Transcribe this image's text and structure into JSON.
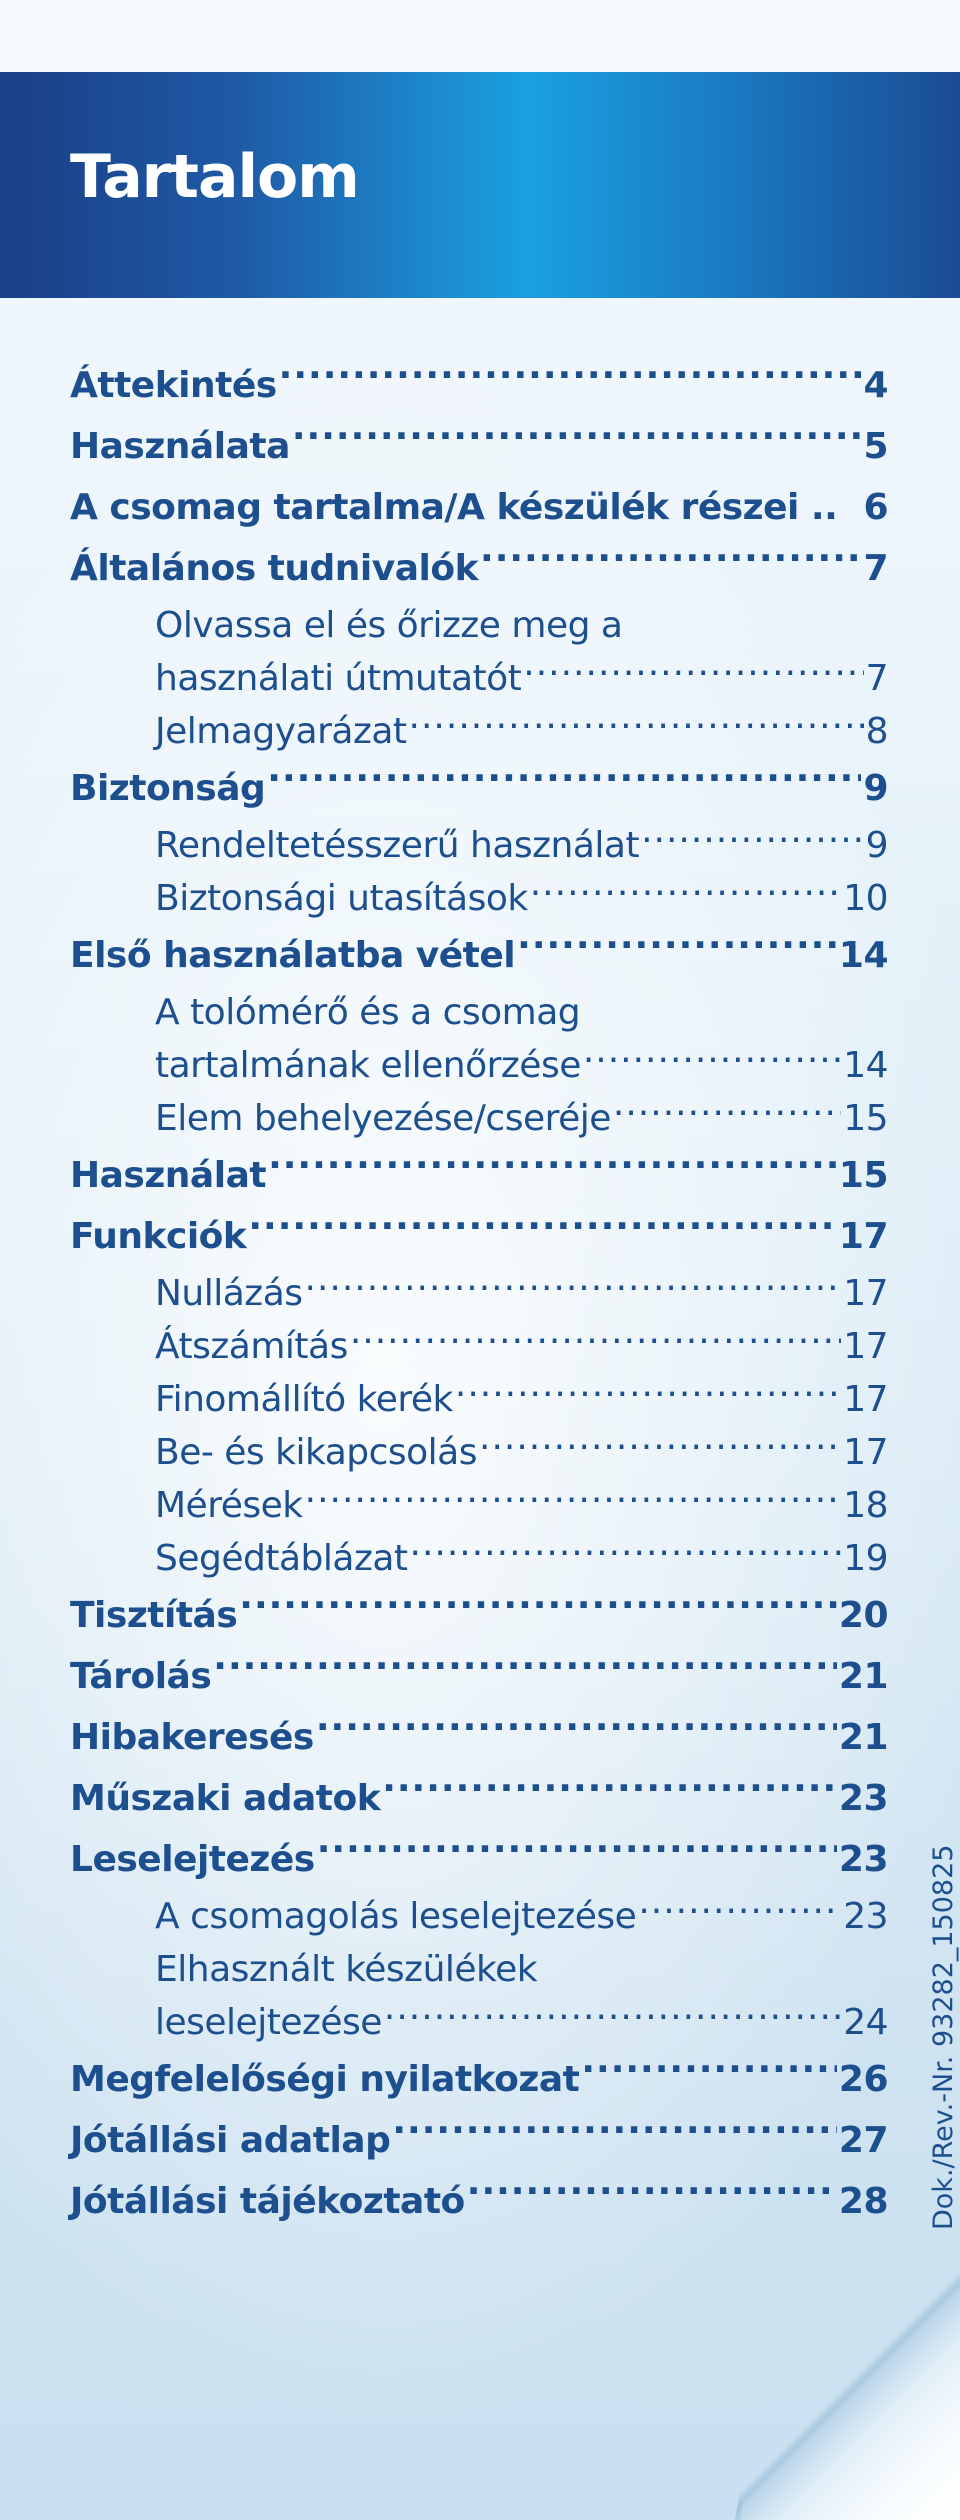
{
  "title": "Tartalom",
  "doc_number": "Dok./Rev.-Nr. 93282_150825",
  "toc": [
    {
      "label": "Áttekintés",
      "page": "4",
      "level": "main"
    },
    {
      "label": "Használata",
      "page": "5",
      "level": "main"
    },
    {
      "label": "A csomag tartalma/A készülék részei ..",
      "page": "6",
      "level": "main",
      "no_dots": true
    },
    {
      "label": "Általános tudnivalók",
      "page": "7",
      "level": "main"
    },
    {
      "label": "Olvassa el és őrizze meg a",
      "page": "",
      "level": "sub",
      "no_dots": true
    },
    {
      "label": "használati útmutatót",
      "page": "7",
      "level": "sub"
    },
    {
      "label": "Jelmagyarázat",
      "page": "8",
      "level": "sub"
    },
    {
      "label": "Biztonság",
      "page": "9",
      "level": "main"
    },
    {
      "label": "Rendeltetésszerű használat",
      "page": "9",
      "level": "sub"
    },
    {
      "label": "Biztonsági utasítások",
      "page": "10",
      "level": "sub"
    },
    {
      "label": "Első használatba vétel",
      "page": "14",
      "level": "main"
    },
    {
      "label": "A tolómérő és a csomag",
      "page": "",
      "level": "sub",
      "no_dots": true
    },
    {
      "label": "tartalmának ellenőrzése",
      "page": "14",
      "level": "sub"
    },
    {
      "label": "Elem behelyezése/cseréje",
      "page": "15",
      "level": "sub"
    },
    {
      "label": "Használat",
      "page": "15",
      "level": "main"
    },
    {
      "label": "Funkciók",
      "page": "17",
      "level": "main"
    },
    {
      "label": "Nullázás",
      "page": "17",
      "level": "sub"
    },
    {
      "label": "Átszámítás",
      "page": "17",
      "level": "sub"
    },
    {
      "label": "Finomállító kerék",
      "page": "17",
      "level": "sub"
    },
    {
      "label": "Be- és kikapcsolás",
      "page": "17",
      "level": "sub"
    },
    {
      "label": "Mérések",
      "page": "18",
      "level": "sub"
    },
    {
      "label": "Segédtáblázat",
      "page": "19",
      "level": "sub"
    },
    {
      "label": "Tisztítás",
      "page": "20",
      "level": "main"
    },
    {
      "label": "Tárolás",
      "page": "21",
      "level": "main"
    },
    {
      "label": "Hibakeresés",
      "page": "21",
      "level": "main"
    },
    {
      "label": "Műszaki adatok",
      "page": "23",
      "level": "main"
    },
    {
      "label": "Leselejtezés",
      "page": "23",
      "level": "main"
    },
    {
      "label": "A csomagolás leselejtezése",
      "page": "23",
      "level": "sub"
    },
    {
      "label": "Elhasznált készülékek",
      "page": "",
      "level": "sub",
      "no_dots": true
    },
    {
      "label": "leselejtezése",
      "page": "24",
      "level": "sub"
    },
    {
      "label": "Megfelelőségi nyilatkozat",
      "page": "26",
      "level": "main"
    },
    {
      "label": "Jótállási adatlap",
      "page": "27",
      "level": "main"
    },
    {
      "label": "Jótállási tájékoztató",
      "page": "28",
      "level": "main"
    }
  ]
}
